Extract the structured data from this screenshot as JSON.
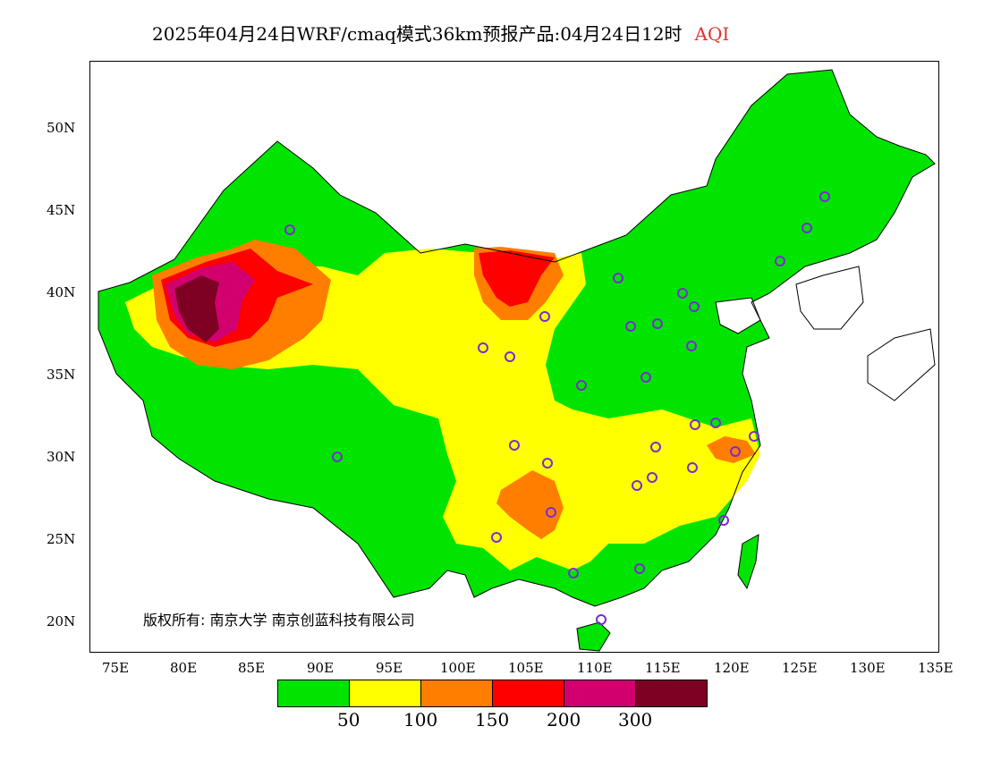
{
  "title": {
    "main": "2025年04月24日WRF/cmaq模式36km预报产品:04月24日12时",
    "variable": "AQI"
  },
  "axes": {
    "lat_ticks": [
      "50N",
      "45N",
      "40N",
      "35N",
      "30N",
      "25N",
      "20N"
    ],
    "lon_ticks": [
      "75E",
      "80E",
      "85E",
      "90E",
      "95E",
      "100E",
      "105E",
      "110E",
      "115E",
      "120E",
      "125E",
      "130E",
      "135E"
    ]
  },
  "legend": {
    "colors": [
      "#00e400",
      "#ffff00",
      "#ff7e00",
      "#ff0000",
      "#d2006e",
      "#7e0023"
    ],
    "labels": [
      "50",
      "100",
      "150",
      "200",
      "300"
    ]
  },
  "copyright": "版权所有: 南京大学  南京创蓝科技有限公司",
  "colors": {
    "good": "#00e400",
    "moderate": "#ffff00",
    "unhealthy_sensitive": "#ff7e00",
    "unhealthy": "#ff0000",
    "very_unhealthy": "#d2006e",
    "hazardous": "#7e0023",
    "station_marker": "#7a2bd6"
  }
}
